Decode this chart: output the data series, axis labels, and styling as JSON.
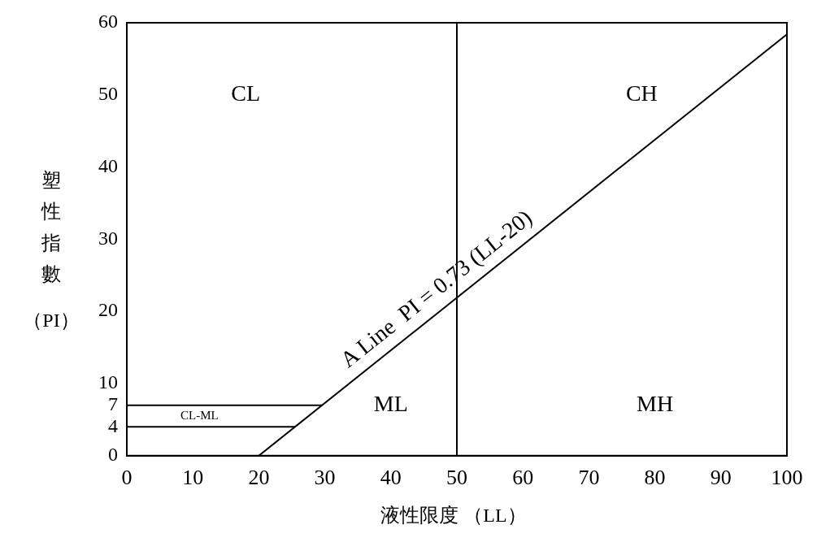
{
  "chart_data": {
    "type": "line",
    "xlabel": "液性限度 （LL）",
    "ylabel": "塑性指數（PI）",
    "xlim": [
      0,
      100
    ],
    "ylim": [
      0,
      60
    ],
    "xticks": [
      0,
      10,
      20,
      30,
      40,
      50,
      60,
      70,
      80,
      90,
      100
    ],
    "yticks": [
      0,
      4,
      7,
      10,
      20,
      30,
      40,
      50,
      60
    ],
    "grid": false,
    "legend": false,
    "marker": "none",
    "line_style": "solid",
    "series": [
      {
        "color": "#000000",
        "x": [
          20,
          100
        ],
        "values": [
          0,
          58.4
        ]
      },
      {
        "color": "#000000",
        "x": [
          0,
          29.6
        ],
        "values": [
          7,
          7
        ]
      },
      {
        "color": "#000000",
        "x": [
          0,
          25.5
        ],
        "values": [
          4,
          4
        ]
      }
    ],
    "ref_lines": [
      {
        "axis": "x",
        "value": 50,
        "color": "#000000",
        "line_style": "solid"
      }
    ],
    "annotations": [
      "CL",
      "CH",
      "ML",
      "MH",
      "CL-ML",
      "A Line  PI = 0.73 (LL-20)"
    ]
  }
}
